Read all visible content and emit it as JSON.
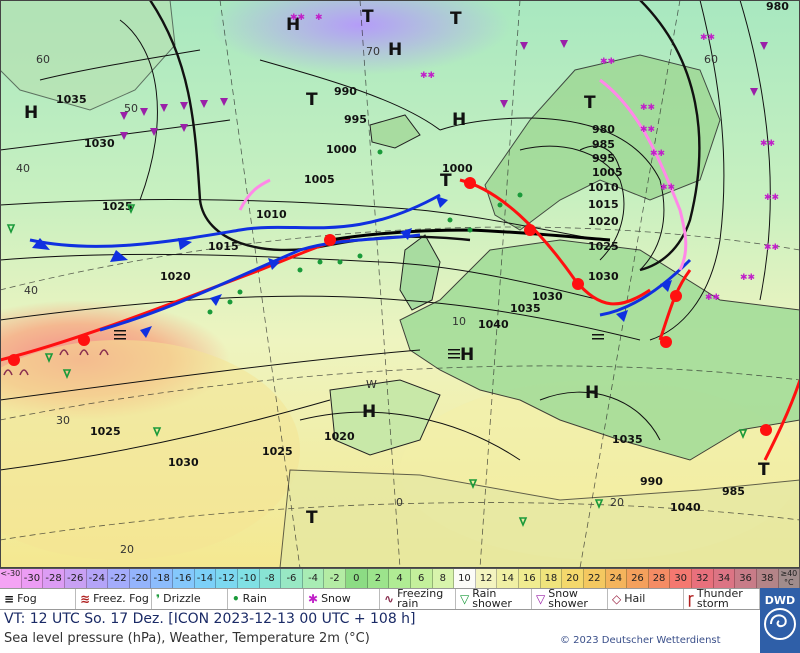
{
  "map": {
    "high_label": "H",
    "low_label": "T",
    "isobars": [
      "1035",
      "1030",
      "1025",
      "1020",
      "1015",
      "1010",
      "1005",
      "1000",
      "995",
      "990",
      "985",
      "980",
      "1040",
      "1035",
      "1030",
      "1025",
      "1020",
      "1035",
      "1040",
      "1030",
      "1025",
      "1030",
      "1025",
      "1020",
      "1015",
      "1010",
      "1005",
      "1000",
      "995",
      "990",
      "985",
      "980"
    ],
    "coords": [
      "60",
      "50",
      "40",
      "30",
      "20",
      "70",
      "60",
      "40",
      "0",
      "10",
      "20",
      "W"
    ],
    "colors": {
      "warm_front": "#ff1010",
      "cold_front": "#1030e0",
      "occlusion": "#000000",
      "occlusion_upper": "#ff88e8"
    }
  },
  "scale": {
    "cells": [
      "<-30",
      "-30",
      "-28",
      "-26",
      "-24",
      "-22",
      "-20",
      "-18",
      "-16",
      "-14",
      "-12",
      "-10",
      "-8",
      "-6",
      "-4",
      "-2",
      "0",
      "2",
      "4",
      "6",
      "8",
      "10",
      "12",
      "14",
      "16",
      "18",
      "20",
      "22",
      "24",
      "26",
      "28",
      "30",
      "32",
      "34",
      "36",
      "38",
      "≥40 °C"
    ],
    "colors": [
      "#f4a3f4",
      "#ec9cf4",
      "#dc9cf4",
      "#c8a0f4",
      "#b4a4f8",
      "#a4acfc",
      "#94b4fc",
      "#8cbcfc",
      "#84c8fc",
      "#7cd0f8",
      "#7cd8f0",
      "#80e0e4",
      "#88e4d4",
      "#98e8c4",
      "#a8ecb4",
      "#b4eca4",
      "#8cdc84",
      "#9ce48c",
      "#b0ec94",
      "#c4f09c",
      "#d8f4ac",
      "#fcfcf8",
      "#f4f4c0",
      "#f0f0a4",
      "#f0ec90",
      "#f0e47c",
      "#f4d86c",
      "#f4c860",
      "#f4b45c",
      "#f4a05c",
      "#f48c64",
      "#f47870",
      "#e8707c",
      "#dc7484",
      "#c87c88",
      "#b48488",
      "#a08c8c"
    ]
  },
  "legend": [
    {
      "symbol": "fog-icon",
      "text": "Fog"
    },
    {
      "symbol": "freezing-fog-icon",
      "text": "Freez. Fog"
    },
    {
      "symbol": "drizzle-icon",
      "text": "Drizzle"
    },
    {
      "symbol": "rain-icon",
      "text": "Rain"
    },
    {
      "symbol": "snow-icon",
      "text": "Snow"
    },
    {
      "symbol": "freezing-rain-icon",
      "text": "Freezing rain"
    },
    {
      "symbol": "rain-shower-icon",
      "text": "Rain shower"
    },
    {
      "symbol": "snow-shower-icon",
      "text": "Snow shower"
    },
    {
      "symbol": "hail-icon",
      "text": "Hail"
    },
    {
      "symbol": "thunderstorm-icon",
      "text": "Thunder storm"
    }
  ],
  "valid_time": "VT: 12 UTC So.   17 Dez. [ICON 2023-12-13   00 UTC + 108 h]",
  "subtitle": "Sea level pressure (hPa), Weather, Temperature 2m (°C)",
  "copyright": "© 2023 Deutscher Wetterdienst",
  "logo_text": "DWD"
}
